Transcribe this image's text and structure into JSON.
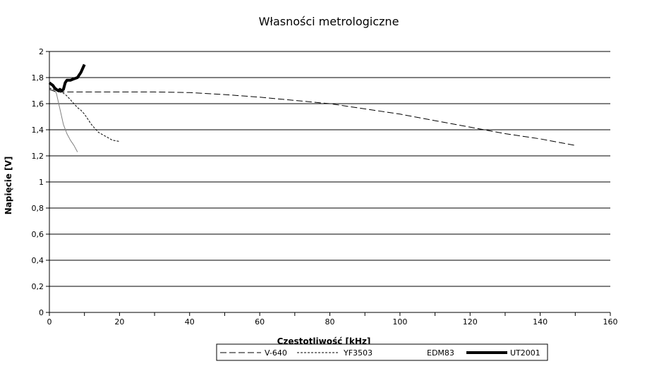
{
  "chart_data": {
    "type": "line",
    "title": "Własności metrologiczne",
    "xlabel": "Częstotliwość [kHz]",
    "ylabel": "Napięcie [V]",
    "xlim": [
      0,
      160
    ],
    "ylim": [
      0,
      2
    ],
    "grid": "horizontal",
    "legend_position": "bottom",
    "x_ticks": [
      "0",
      "20",
      "40",
      "60",
      "80",
      "100",
      "120",
      "140",
      "160"
    ],
    "y_ticks": [
      "0",
      "0,2",
      "0,4",
      "0,6",
      "0,8",
      "1",
      "1,2",
      "1,4",
      "1,6",
      "1,8",
      "2"
    ],
    "series": [
      {
        "name": "V-640",
        "style": "long-dash",
        "color": "#000000",
        "x": [
          0,
          2,
          5,
          10,
          20,
          30,
          40,
          50,
          60,
          70,
          80,
          90,
          100,
          110,
          120,
          130,
          140,
          150
        ],
        "y": [
          1.71,
          1.69,
          1.69,
          1.69,
          1.69,
          1.69,
          1.685,
          1.67,
          1.65,
          1.625,
          1.6,
          1.56,
          1.52,
          1.47,
          1.42,
          1.37,
          1.33,
          1.28
        ]
      },
      {
        "name": "YF3503",
        "style": "short-dash",
        "color": "#000000",
        "x": [
          0,
          1,
          2,
          3,
          4,
          5,
          6,
          7,
          8,
          9,
          10,
          11,
          12,
          14,
          16,
          18,
          20
        ],
        "y": [
          1.72,
          1.71,
          1.7,
          1.69,
          1.68,
          1.66,
          1.63,
          1.6,
          1.57,
          1.55,
          1.52,
          1.48,
          1.44,
          1.38,
          1.35,
          1.32,
          1.31
        ]
      },
      {
        "name": "EDM83",
        "style": "thin-solid",
        "color": "#808080",
        "x": [
          0,
          1,
          2,
          3,
          4,
          5,
          6,
          7,
          8
        ],
        "y": [
          1.75,
          1.73,
          1.68,
          1.56,
          1.44,
          1.37,
          1.32,
          1.28,
          1.23
        ]
      },
      {
        "name": "UT2001",
        "style": "thick-solid",
        "color": "#000000",
        "x": [
          0,
          0.5,
          1,
          1.5,
          2,
          2.5,
          3,
          3.5,
          4,
          4.5,
          5,
          5.5,
          6,
          7,
          8,
          8.5,
          9,
          9.5,
          10
        ],
        "y": [
          1.76,
          1.75,
          1.74,
          1.72,
          1.71,
          1.7,
          1.71,
          1.7,
          1.71,
          1.76,
          1.78,
          1.78,
          1.78,
          1.79,
          1.8,
          1.82,
          1.84,
          1.87,
          1.9
        ]
      }
    ]
  }
}
